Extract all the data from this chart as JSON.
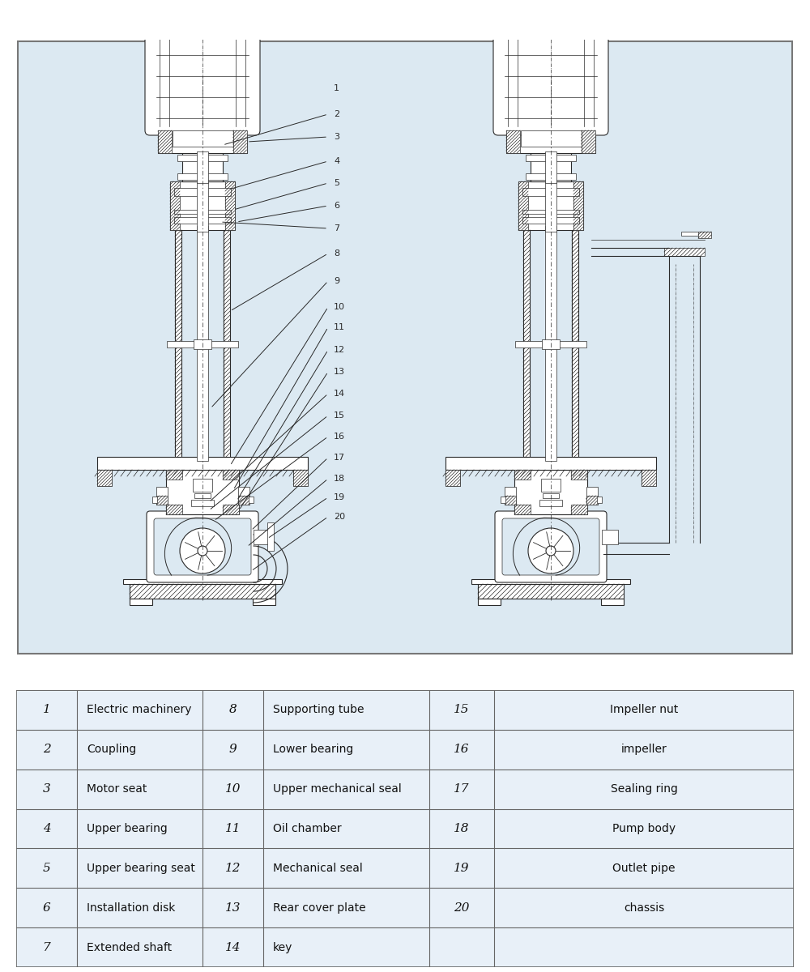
{
  "bg_color": "#dce9f2",
  "line_color": "#2a2a2a",
  "hatch_color": "#2a2a2a",
  "table_bg": "#e8f0f8",
  "table_rows": [
    {
      "n1": "1",
      "d1": "Electric machinery",
      "n2": "8",
      "d2": "Supporting tube",
      "n3": "15",
      "d3": "Impeller nut"
    },
    {
      "n1": "2",
      "d1": "Coupling",
      "n2": "9",
      "d2": "Lower bearing",
      "n3": "16",
      "d3": "impeller"
    },
    {
      "n1": "3",
      "d1": "Motor seat",
      "n2": "10",
      "d2": "Upper mechanical seal",
      "n3": "17",
      "d3": "Sealing ring"
    },
    {
      "n1": "4",
      "d1": "Upper bearing",
      "n2": "11",
      "d2": "Oil chamber",
      "n3": "18",
      "d3": "Pump body"
    },
    {
      "n1": "5",
      "d1": "Upper bearing seat",
      "n2": "12",
      "d2": "Mechanical seal",
      "n3": "19",
      "d3": "Outlet pipe"
    },
    {
      "n1": "6",
      "d1": "Installation disk",
      "n2": "13",
      "d2": "Rear cover plate",
      "n3": "20",
      "d3": "chassis"
    },
    {
      "n1": "7",
      "d1": "Extended shaft",
      "n2": "14",
      "d2": "key",
      "n3": "",
      "d3": ""
    }
  ],
  "lw": 0.8,
  "lw_thick": 1.2,
  "lw_thin": 0.5
}
